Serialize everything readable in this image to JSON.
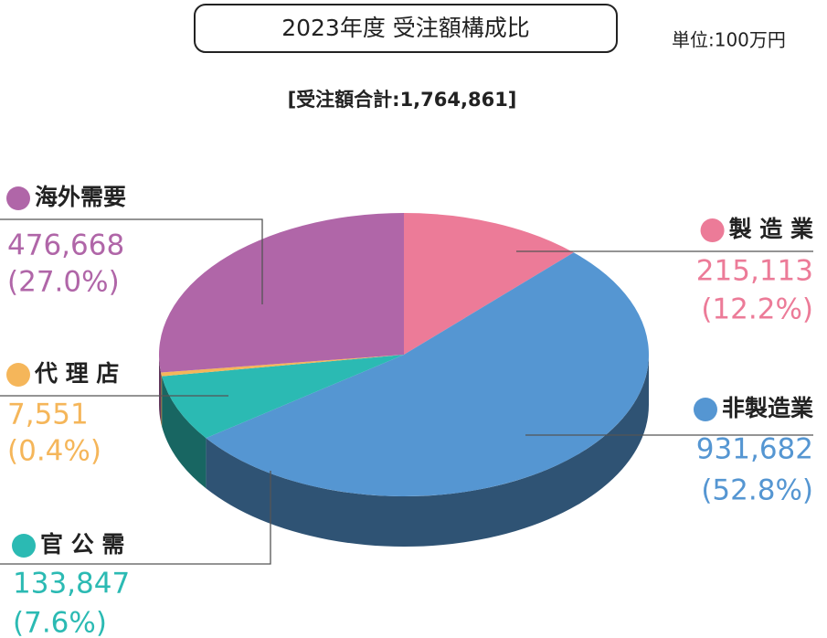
{
  "chart_data": {
    "type": "pie",
    "title": "2023年度 受注額構成比",
    "unit_note": "単位:100万円",
    "subtitle": "[受注額合計:1,764,861]",
    "categories": [
      "製 造 業",
      "非製造業",
      "官 公 需",
      "代 理 店",
      "海外需要"
    ],
    "values": [
      215113,
      931682,
      133847,
      7551,
      476668
    ],
    "value_labels": [
      "215,113",
      "931,682",
      "133,847",
      "7,551",
      "476,668"
    ],
    "percent_labels": [
      "(12.2%)",
      "(52.8%)",
      "(7.6%)",
      "(0.4%)",
      "(27.0%)"
    ],
    "colors": [
      "#ec7b98",
      "#5596d2",
      "#2bbab3",
      "#f5b65a",
      "#b066a8"
    ]
  }
}
